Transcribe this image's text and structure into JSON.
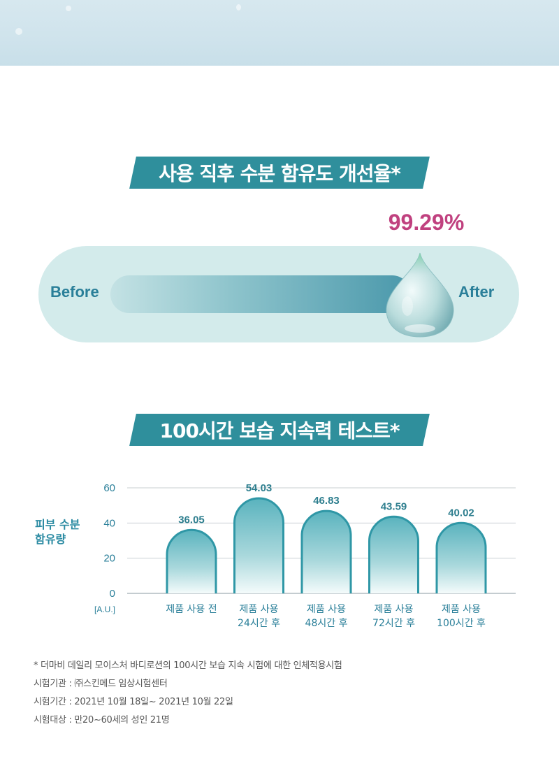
{
  "section1": {
    "title": "사용 직후 수분 함유도 개선율*",
    "percent": "99.29%",
    "before_label": "Before",
    "after_label": "After"
  },
  "section2": {
    "title": "100시간 보습 지속력 테스트*",
    "y_axis_label": "피부 수분\n함유량"
  },
  "chart_data": {
    "type": "bar",
    "categories": [
      "제품 사용 전",
      "제품 사용\n24시간 후",
      "제품 사용\n48시간 후",
      "제품 사용\n72시간 후",
      "제품 사용\n100시간 후"
    ],
    "values": [
      36.05,
      54.03,
      46.83,
      43.59,
      40.02
    ],
    "value_labels": [
      "36.05",
      "54.03",
      "46.83",
      "43.59",
      "40.02"
    ],
    "ylim": [
      0,
      60
    ],
    "yticks": [
      "0",
      "20",
      "40",
      "60"
    ],
    "ylabel": "피부 수분 함유량",
    "yunit": "[A.U.]",
    "grid": true
  },
  "footnotes": [
    "* 더마비 데일리 모이스처 바디로션의 100시간 보습 지속 시험에 대한 인체적용시험",
    "시험기관 : ㈜스킨메드 임상시험센터",
    "시험기간 : 2021년 10월 18일~ 2021년 10월 22일",
    "시험대상 : 만20~60세의 성인 21명"
  ],
  "colors": {
    "banner": "#2f8f9c",
    "percent": "#c0417f",
    "bar_top": "#5ab3be",
    "bar_outline": "#2f97a6",
    "axis_text": "#2a7f99"
  }
}
